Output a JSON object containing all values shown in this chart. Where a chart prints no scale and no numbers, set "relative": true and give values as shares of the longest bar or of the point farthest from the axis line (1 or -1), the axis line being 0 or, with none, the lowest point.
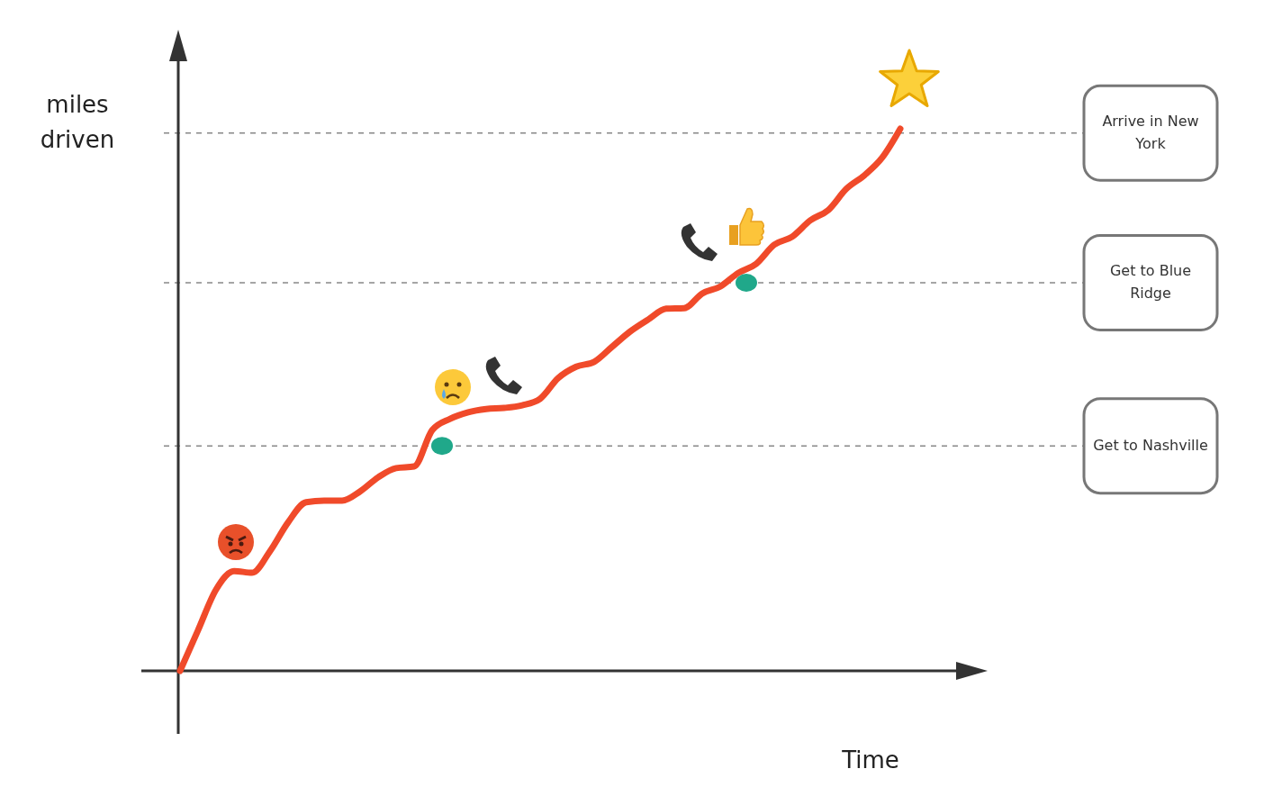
{
  "chart_data": {
    "type": "line",
    "xlabel": "Time",
    "ylabel": "miles driven",
    "relative": true,
    "categories": [
      null,
      null,
      null,
      null,
      null,
      null,
      null,
      null,
      null,
      null,
      null,
      null,
      null,
      null,
      null,
      null,
      null,
      null,
      null,
      null,
      null,
      null,
      null,
      null,
      null,
      null,
      null,
      null,
      null,
      null,
      null,
      null,
      null,
      null,
      null,
      null,
      null,
      null,
      null,
      null,
      null,
      null,
      null,
      null,
      null
    ],
    "series": [
      {
        "color": "#f04a2a",
        "values": [
          0,
          0.075,
          0.15,
          0.184,
          0.181,
          0.221,
          0.274,
          0.311,
          0.314,
          0.314,
          0.331,
          0.357,
          0.374,
          0.377,
          0.444,
          0.465,
          0.477,
          0.483,
          0.485,
          0.49,
          0.502,
          0.54,
          0.561,
          0.57,
          0.598,
          0.626,
          0.648,
          0.668,
          0.669,
          0.696,
          0.709,
          0.734,
          0.751,
          0.786,
          0.801,
          0.831,
          0.85,
          0.889,
          0.914,
          0.947,
          1,
          null,
          null,
          null,
          null
        ]
      }
    ],
    "line_style": "solid",
    "marker": "none",
    "ref_lines": [
      {
        "axis": "y",
        "value": 0.992,
        "label": "Arrive in New York",
        "color": "#888888",
        "line_style": "dashed"
      },
      {
        "axis": "y",
        "value": 0.716,
        "label": "Get to Blue Ridge",
        "color": "#888888",
        "line_style": "dashed"
      },
      {
        "axis": "y",
        "value": 0.415,
        "label": "Get to Nashville",
        "color": "#888888",
        "line_style": "dashed"
      }
    ]
  }
}
